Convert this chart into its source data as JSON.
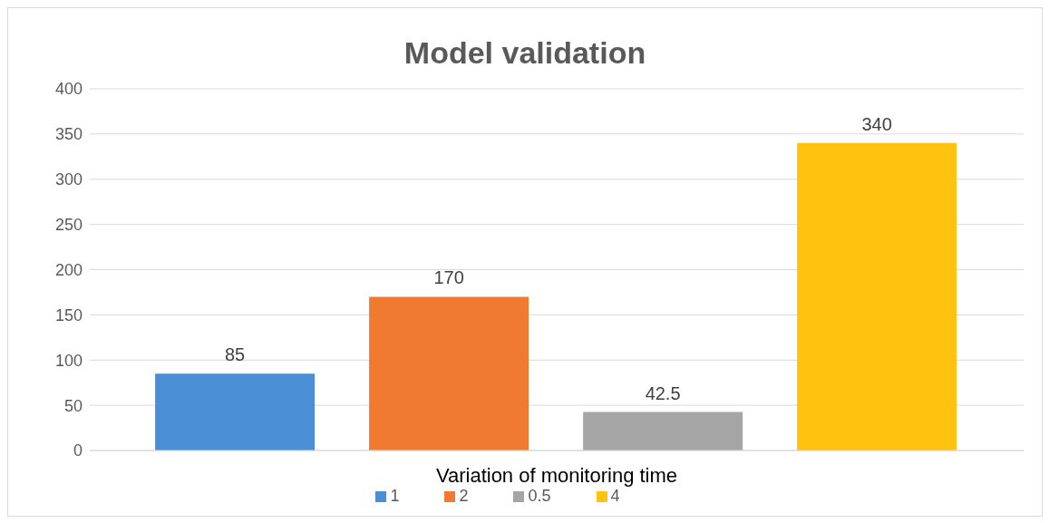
{
  "chart_data": {
    "type": "bar",
    "title": "Model validation",
    "xlabel": "Variation of monitoring time",
    "categories": [
      null
    ],
    "series": [
      {
        "name": "1",
        "color": "#4a8fd6",
        "values": [
          85
        ]
      },
      {
        "name": "2",
        "color": "#f07a30",
        "values": [
          170
        ]
      },
      {
        "name": "0.5",
        "color": "#a5a5a5",
        "values": [
          42.5
        ]
      },
      {
        "name": "4",
        "color": "#ffc20e",
        "values": [
          340
        ]
      }
    ],
    "ylim": [
      0,
      400
    ],
    "yticks": [
      0,
      50,
      100,
      150,
      200,
      250,
      300,
      350,
      400
    ],
    "grid": "y",
    "legend": "bottom",
    "data_labels": true
  }
}
